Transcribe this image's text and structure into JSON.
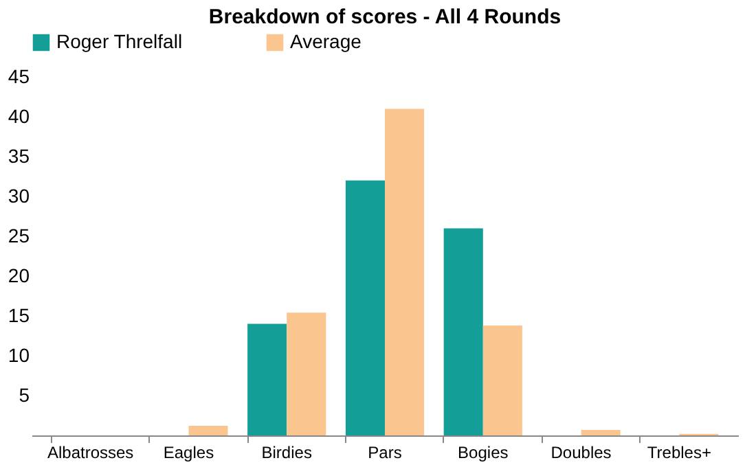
{
  "chart_data": {
    "type": "bar",
    "title": "Breakdown of scores - All 4 Rounds",
    "categories": [
      "Albatrosses",
      "Eagles",
      "Birdies",
      "Pars",
      "Bogies",
      "Doubles",
      "Trebles+"
    ],
    "series": [
      {
        "name": "Roger Threlfall",
        "color": "#139e98",
        "values": [
          0,
          0,
          14,
          32,
          26,
          0,
          0
        ]
      },
      {
        "name": "Average",
        "color": "#fbc58f",
        "values": [
          0,
          1.2,
          15.4,
          41,
          13.8,
          0.7,
          0.2
        ]
      }
    ],
    "ylim": [
      0,
      45
    ],
    "yticks": [
      5,
      10,
      15,
      20,
      25,
      30,
      35,
      40,
      45
    ],
    "grid": false,
    "legend": "top"
  }
}
